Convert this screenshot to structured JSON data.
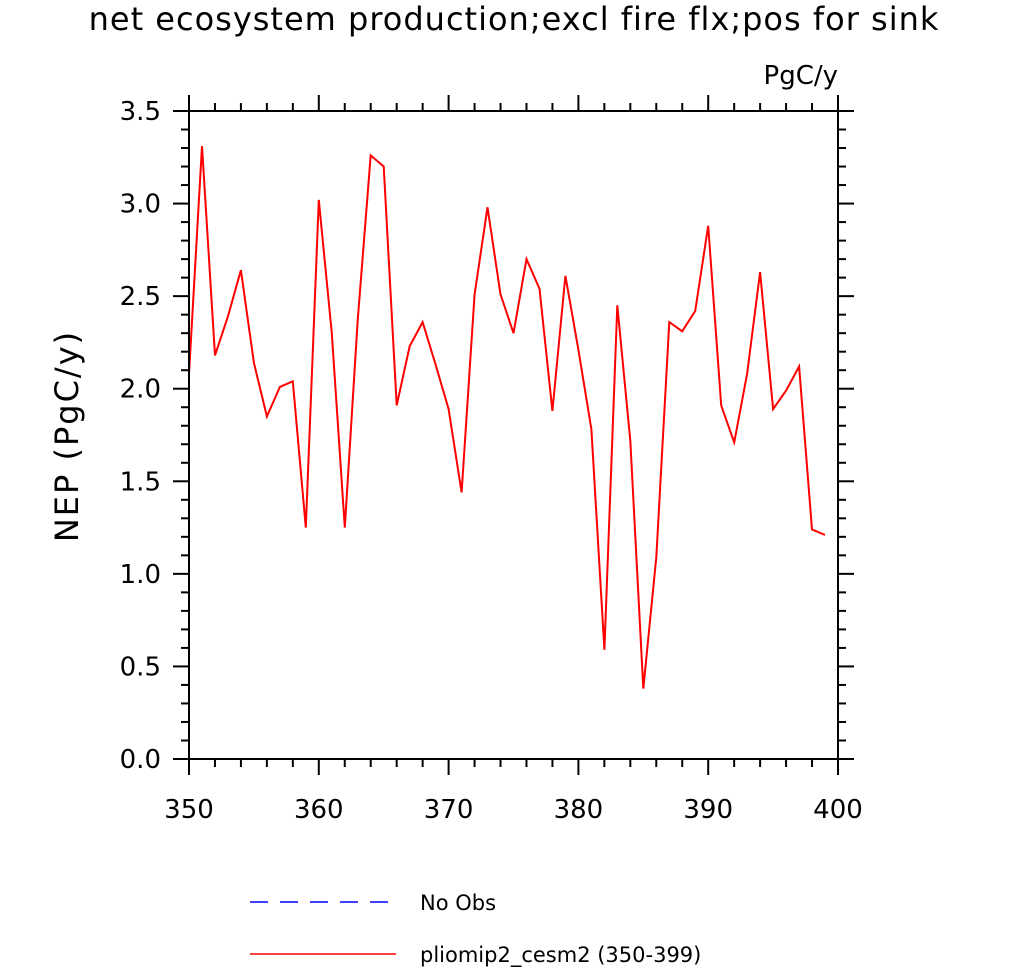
{
  "chart_data": {
    "type": "line",
    "title": "net ecosystem production;excl fire flx;pos for sink",
    "units": "PgC/y",
    "xlabel": "",
    "ylabel": "NEP  (PgC/y)",
    "xlim": [
      350,
      400
    ],
    "ylim": [
      0.0,
      3.5
    ],
    "x_ticks": [
      "350",
      "360",
      "370",
      "380",
      "390",
      "400"
    ],
    "y_ticks": [
      "0.0",
      "0.5",
      "1.0",
      "1.5",
      "2.0",
      "2.5",
      "3.0",
      "3.5"
    ],
    "grid": false,
    "legend_position": "bottom",
    "series": [
      {
        "name": "No Obs",
        "color": "#0000ff",
        "dash": "dashed",
        "x": [],
        "y": []
      },
      {
        "name": "pliomip2_cesm2 (350-399)",
        "color": "#ff0000",
        "dash": "solid",
        "x": [
          350,
          351,
          352,
          353,
          354,
          355,
          356,
          357,
          358,
          359,
          360,
          361,
          362,
          363,
          364,
          365,
          366,
          367,
          368,
          369,
          370,
          371,
          372,
          373,
          374,
          375,
          376,
          377,
          378,
          379,
          380,
          381,
          382,
          383,
          384,
          385,
          386,
          387,
          388,
          389,
          390,
          391,
          392,
          393,
          394,
          395,
          396,
          397,
          398,
          399
        ],
        "y": [
          2.08,
          3.31,
          2.18,
          2.39,
          2.64,
          2.14,
          1.85,
          2.01,
          2.04,
          1.25,
          3.02,
          2.3,
          1.25,
          2.37,
          3.26,
          3.2,
          1.91,
          2.23,
          2.36,
          2.13,
          1.89,
          1.44,
          2.51,
          2.98,
          2.51,
          2.3,
          2.7,
          2.54,
          1.88,
          2.61,
          2.21,
          1.78,
          0.59,
          2.45,
          1.72,
          0.38,
          1.09,
          2.36,
          2.31,
          2.42,
          2.88,
          1.91,
          1.71,
          2.08,
          2.63,
          1.89,
          1.99,
          2.12,
          1.24,
          1.21
        ]
      }
    ]
  }
}
